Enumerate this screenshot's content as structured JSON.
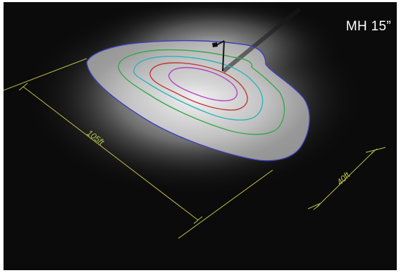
{
  "fixture_label": "MH 15”",
  "dimensions": {
    "length_label": "105ft",
    "width_label": "40ft",
    "dimension_color": "#b9c24a"
  },
  "isolines": [
    {
      "name": "outer",
      "color": "#3b3fbf"
    },
    {
      "name": "second",
      "color": "#35a84a"
    },
    {
      "name": "third",
      "color": "#2fb3b8"
    },
    {
      "name": "fourth",
      "color": "#c23838"
    },
    {
      "name": "inner",
      "color": "#b640c0"
    }
  ],
  "colors": {
    "background": "#0b0b0b",
    "light_pool": "#e6e6e6"
  }
}
